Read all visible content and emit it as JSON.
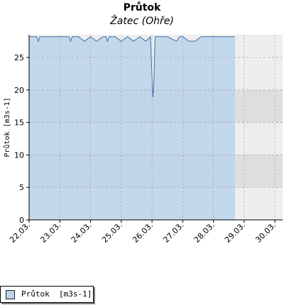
{
  "title": "Průtok",
  "subtitle": "Žatec (Ohře)",
  "legend": {
    "label": "Průtok  [m3s-1]"
  },
  "chart_data": {
    "type": "area",
    "title": "Průtok",
    "subtitle": "Žatec (Ohře)",
    "ylabel": "Průtok [m3s-1]",
    "xlabel": "",
    "ylim": [
      0,
      28.5
    ],
    "xlim": [
      0,
      8.25
    ],
    "yticks": [
      0,
      5,
      10,
      15,
      20,
      25
    ],
    "x_tick_labels": [
      "22.03.",
      "23.03.",
      "24.03.",
      "25.03.",
      "26.03.",
      "27.03.",
      "28.03.",
      "29.03.",
      "30.03."
    ],
    "grid": true,
    "legend_position": "bottom-left",
    "series": [
      {
        "name": "Průtok  [m3s-1]",
        "color": "#3a6ea5",
        "fill": "#bcd3ea",
        "x": [
          0,
          0.25,
          0.3,
          0.35,
          0.5,
          1.0,
          1.3,
          1.35,
          1.4,
          1.6,
          1.8,
          2.0,
          2.2,
          2.4,
          2.5,
          2.55,
          2.6,
          2.8,
          3.0,
          3.2,
          3.4,
          3.6,
          3.8,
          3.95,
          4.0,
          4.03,
          4.06,
          4.1,
          4.2,
          4.5,
          4.8,
          4.9,
          5.0,
          5.2,
          5.4,
          5.6,
          6.0,
          6.5,
          6.7
        ],
        "y": [
          28.2,
          28.2,
          27.5,
          28.2,
          28.2,
          28.2,
          28.2,
          27.5,
          28.2,
          28.2,
          27.5,
          28.2,
          27.5,
          28.2,
          28.2,
          27.5,
          28.2,
          28.2,
          27.5,
          28.2,
          27.5,
          28.2,
          27.5,
          28.2,
          22.0,
          18.9,
          21.0,
          28.2,
          28.2,
          28.2,
          27.5,
          28.2,
          28.2,
          27.5,
          27.5,
          28.2,
          28.2,
          28.2,
          28.2
        ]
      }
    ]
  }
}
